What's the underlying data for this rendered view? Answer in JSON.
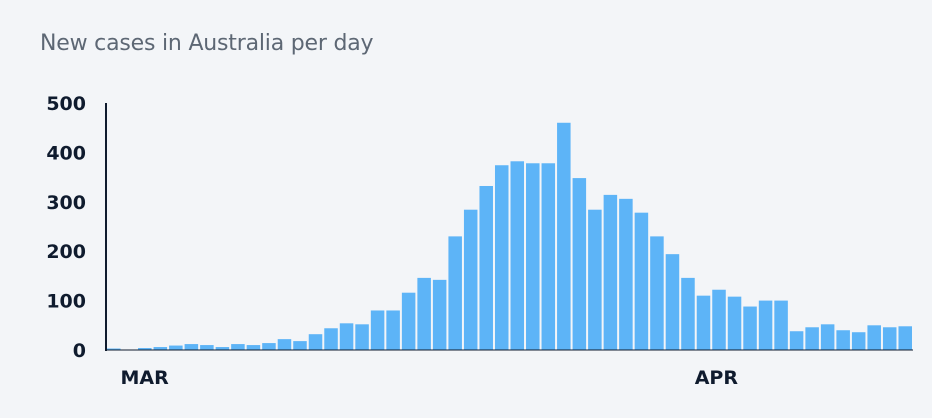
{
  "chart_data": {
    "type": "bar",
    "title": "New cases in Australia per day",
    "xlabel": "",
    "ylabel": "",
    "ylim": [
      0,
      500
    ],
    "yticks": [
      0,
      100,
      200,
      300,
      400,
      500
    ],
    "x_tick_labels": [
      {
        "label": "MAR",
        "index": 1
      },
      {
        "label": "APR",
        "index": 38
      }
    ],
    "bar_color": "#5db4f7",
    "values": [
      3,
      0,
      4,
      6,
      9,
      12,
      10,
      6,
      12,
      10,
      14,
      22,
      18,
      32,
      44,
      54,
      52,
      80,
      80,
      116,
      146,
      142,
      230,
      284,
      332,
      374,
      382,
      378,
      378,
      460,
      348,
      284,
      314,
      306,
      278,
      230,
      194,
      146,
      110,
      122,
      108,
      88,
      100,
      100,
      38,
      46,
      52,
      40,
      36,
      50,
      46,
      48
    ]
  }
}
